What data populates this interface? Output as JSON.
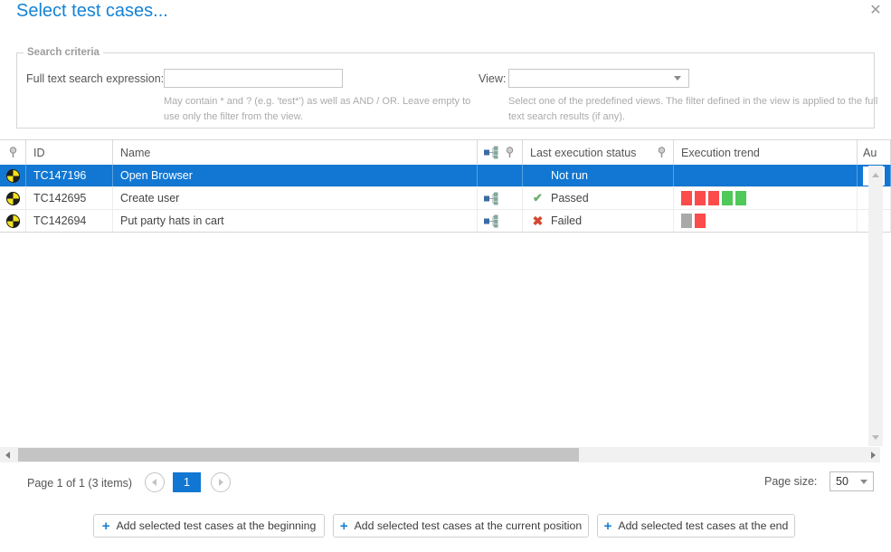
{
  "dialog": {
    "title": "Select test cases...",
    "close_icon": "close"
  },
  "search": {
    "legend": "Search criteria",
    "fulltext_label": "Full text search expression:",
    "fulltext_value": "",
    "fulltext_hint": "May contain * and ? (e.g. 'test*') as well as AND / OR. Leave empty to use only the filter from the view.",
    "view_label": "View:",
    "view_value": "",
    "view_hint": "Select one of the predefined views. The filter defined in the view is applied to the full text search results (if any)."
  },
  "table": {
    "columns": {
      "id": "ID",
      "name": "Name",
      "status": "Last execution status",
      "trend": "Execution trend",
      "au": "Au"
    },
    "rows": [
      {
        "id": "TC147196",
        "name": "Open Browser",
        "status": "Not run",
        "selected": true,
        "trend": []
      },
      {
        "id": "TC142695",
        "name": "Create user",
        "status": "Passed",
        "selected": false,
        "trend": [
          "red",
          "red",
          "red",
          "green",
          "green"
        ]
      },
      {
        "id": "TC142694",
        "name": "Put party hats in cart",
        "status": "Failed",
        "selected": false,
        "trend": [
          "gray",
          "red"
        ]
      }
    ]
  },
  "pager": {
    "summary": "Page 1 of 1 (3 items)",
    "current_page": "1",
    "page_size_label": "Page size:",
    "page_size_value": "50"
  },
  "actions": [
    {
      "label": "Add selected test cases at the beginning"
    },
    {
      "label": "Add selected test cases at the current position"
    },
    {
      "label": "Add selected test cases at the end"
    }
  ],
  "colors": {
    "accent_blue": "#1177d2",
    "title_blue": "#1583d6",
    "trend_red": "#fb4b4b",
    "trend_green": "#4fc95a",
    "trend_gray": "#a9a9a9",
    "passed_green": "#6cae70",
    "failed_red": "#d4472f",
    "testcase_yellow": "#f3e31c",
    "testcase_black": "#1d1d1d"
  }
}
